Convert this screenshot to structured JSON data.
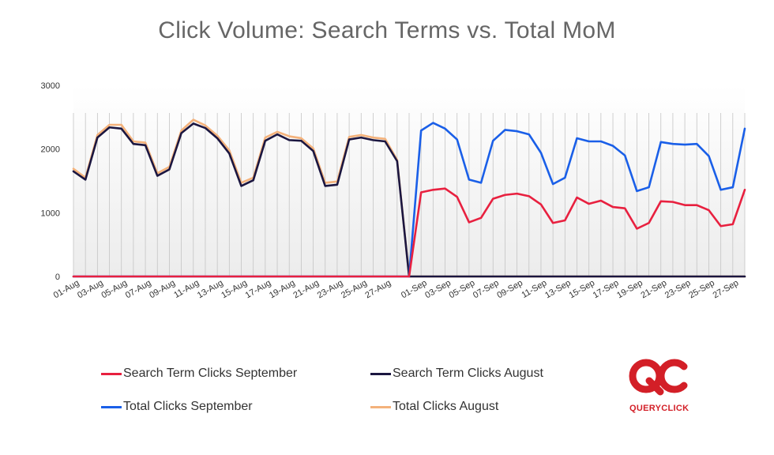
{
  "title": "Click Volume: Search Terms vs. Total MoM",
  "chart_data": {
    "type": "line",
    "title": "Click Volume: Search Terms vs. Total MoM",
    "xlabel": "",
    "ylabel": "",
    "ylim": [
      0,
      3000
    ],
    "yticks": [
      "0",
      "1000",
      "2000",
      "3000"
    ],
    "grid": "vertical",
    "legend": "bottom",
    "categories": [
      "01-Aug",
      "02-Aug",
      "03-Aug",
      "04-Aug",
      "05-Aug",
      "06-Aug",
      "07-Aug",
      "08-Aug",
      "09-Aug",
      "10-Aug",
      "11-Aug",
      "12-Aug",
      "13-Aug",
      "14-Aug",
      "15-Aug",
      "16-Aug",
      "17-Aug",
      "18-Aug",
      "19-Aug",
      "20-Aug",
      "21-Aug",
      "22-Aug",
      "23-Aug",
      "24-Aug",
      "25-Aug",
      "26-Aug",
      "27-Aug",
      "28-Aug",
      "31-Aug",
      "01-Sep",
      "02-Sep",
      "03-Sep",
      "04-Sep",
      "05-Sep",
      "06-Sep",
      "07-Sep",
      "08-Sep",
      "09-Sep",
      "10-Sep",
      "11-Sep",
      "12-Sep",
      "13-Sep",
      "14-Sep",
      "15-Sep",
      "16-Sep",
      "17-Sep",
      "18-Sep",
      "19-Sep",
      "20-Sep",
      "21-Sep",
      "22-Sep",
      "23-Sep",
      "24-Sep",
      "25-Sep",
      "26-Sep",
      "27-Sep",
      "28-Sep"
    ],
    "xtick_labels": [
      "01-Aug",
      "03-Aug",
      "05-Aug",
      "07-Aug",
      "09-Aug",
      "11-Aug",
      "13-Aug",
      "15-Aug",
      "17-Aug",
      "19-Aug",
      "21-Aug",
      "23-Aug",
      "25-Aug",
      "27-Aug",
      "01-Sep",
      "03-Sep",
      "05-Sep",
      "07-Sep",
      "09-Sep",
      "11-Sep",
      "13-Sep",
      "15-Sep",
      "17-Sep",
      "19-Sep",
      "21-Sep",
      "23-Sep",
      "25-Sep",
      "27-Sep"
    ],
    "series": [
      {
        "name": "Total Clicks August",
        "color": "#f4b27b",
        "values": [
          1690,
          1550,
          2220,
          2380,
          2380,
          2120,
          2100,
          1620,
          1720,
          2290,
          2460,
          2370,
          2210,
          1980,
          1470,
          1550,
          2180,
          2270,
          2200,
          2170,
          2010,
          1470,
          1490,
          2190,
          2220,
          2180,
          2160,
          1830,
          0,
          0,
          0,
          0,
          0,
          0,
          0,
          0,
          0,
          0,
          0,
          0,
          0,
          0,
          0,
          0,
          0,
          0,
          0,
          0,
          0,
          0,
          0,
          0,
          0,
          0,
          0,
          0,
          0
        ]
      },
      {
        "name": "Search Term Clicks August",
        "color": "#1b1640",
        "values": [
          1650,
          1520,
          2180,
          2340,
          2320,
          2080,
          2060,
          1580,
          1680,
          2250,
          2400,
          2330,
          2170,
          1930,
          1420,
          1510,
          2130,
          2230,
          2140,
          2130,
          1970,
          1420,
          1440,
          2150,
          2180,
          2140,
          2120,
          1810,
          0,
          0,
          0,
          0,
          0,
          0,
          0,
          0,
          0,
          0,
          0,
          0,
          0,
          0,
          0,
          0,
          0,
          0,
          0,
          0,
          0,
          0,
          0,
          0,
          0,
          0,
          0,
          0,
          0
        ]
      },
      {
        "name": "Total Clicks September",
        "color": "#1a5fe8",
        "values": [
          0,
          0,
          0,
          0,
          0,
          0,
          0,
          0,
          0,
          0,
          0,
          0,
          0,
          0,
          0,
          0,
          0,
          0,
          0,
          0,
          0,
          0,
          0,
          0,
          0,
          0,
          0,
          0,
          0,
          2290,
          2410,
          2320,
          2150,
          1520,
          1470,
          2130,
          2300,
          2280,
          2230,
          1940,
          1450,
          1550,
          2170,
          2120,
          2120,
          2050,
          1900,
          1340,
          1400,
          2110,
          2080,
          2070,
          2080,
          1890,
          1360,
          1400,
          2320
        ]
      },
      {
        "name": "Search Term Clicks September",
        "color": "#e8203f",
        "values": [
          0,
          0,
          0,
          0,
          0,
          0,
          0,
          0,
          0,
          0,
          0,
          0,
          0,
          0,
          0,
          0,
          0,
          0,
          0,
          0,
          0,
          0,
          0,
          0,
          0,
          0,
          0,
          0,
          0,
          1320,
          1360,
          1380,
          1250,
          850,
          920,
          1220,
          1280,
          1300,
          1260,
          1130,
          840,
          880,
          1240,
          1140,
          1190,
          1090,
          1070,
          750,
          840,
          1180,
          1170,
          1120,
          1120,
          1040,
          790,
          820,
          1360
        ]
      }
    ]
  },
  "legend": [
    {
      "label": "Search Term Clicks September",
      "color": "#e8203f"
    },
    {
      "label": "Search Term Clicks August",
      "color": "#1b1640"
    },
    {
      "label": "Total Clicks September",
      "color": "#1a5fe8"
    },
    {
      "label": "Total Clicks August",
      "color": "#f4b27b"
    }
  ],
  "logo": {
    "text": "QUERYCLICK",
    "color": "#d31f27"
  }
}
